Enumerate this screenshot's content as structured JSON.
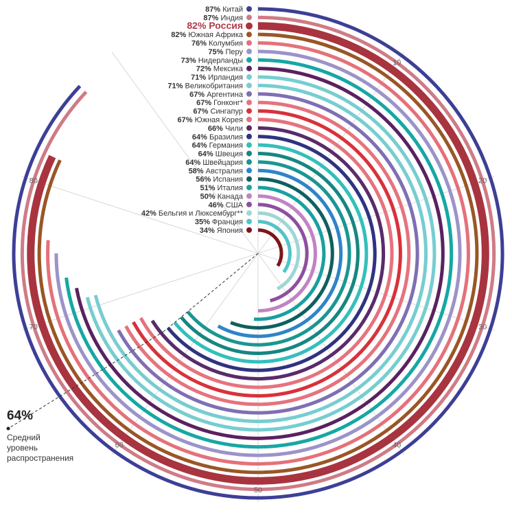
{
  "chart_data": {
    "type": "radial-bar",
    "scale_max": 100,
    "tick_labels": [
      "10",
      "20",
      "30",
      "40",
      "50",
      "60",
      "70",
      "80"
    ],
    "tick_values": [
      10,
      20,
      30,
      40,
      50,
      60,
      70,
      80
    ],
    "grid": true,
    "average": {
      "value": 64,
      "label": "64%",
      "caption": [
        "Средний",
        "уровень",
        "распространения"
      ]
    },
    "highlight_country": "Россия",
    "series": [
      {
        "country": "Китай",
        "value": 87,
        "pct": "87%",
        "color": "#3d3f96"
      },
      {
        "country": "Индия",
        "value": 87,
        "pct": "87%",
        "color": "#cf7b85"
      },
      {
        "country": "Россия",
        "value": 82,
        "pct": "82%",
        "color": "#a8343f",
        "highlight": true
      },
      {
        "country": "Южная Африка",
        "value": 82,
        "pct": "82%",
        "color": "#9a5626"
      },
      {
        "country": "Колумбия",
        "value": 76,
        "pct": "76%",
        "color": "#e4717a"
      },
      {
        "country": "Перу",
        "value": 75,
        "pct": "75%",
        "color": "#9b93c8"
      },
      {
        "country": "Нидерланды",
        "value": 73,
        "pct": "73%",
        "color": "#17a7a4"
      },
      {
        "country": "Мексика",
        "value": 72,
        "pct": "72%",
        "color": "#5a2160"
      },
      {
        "country": "Ирландия",
        "value": 71,
        "pct": "71%",
        "color": "#77cdd0"
      },
      {
        "country": "Великобритания",
        "value": 71,
        "pct": "71%",
        "color": "#77cdd0"
      },
      {
        "country": "Аргентина",
        "value": 67,
        "pct": "67%",
        "color": "#7f6fb3"
      },
      {
        "country": "Гонконг*",
        "value": 67,
        "pct": "67%",
        "color": "#e5737e"
      },
      {
        "country": "Сингапур",
        "value": 67,
        "pct": "67%",
        "color": "#d8323b"
      },
      {
        "country": "Южная Корея",
        "value": 67,
        "pct": "67%",
        "color": "#e5737e"
      },
      {
        "country": "Чили",
        "value": 66,
        "pct": "66%",
        "color": "#5a2b6b"
      },
      {
        "country": "Бразилия",
        "value": 64,
        "pct": "64%",
        "color": "#2f3380"
      },
      {
        "country": "Германия",
        "value": 64,
        "pct": "64%",
        "color": "#34bfbb"
      },
      {
        "country": "Швеция",
        "value": 64,
        "pct": "64%",
        "color": "#178680"
      },
      {
        "country": "Швейцария",
        "value": 64,
        "pct": "64%",
        "color": "#1a9692"
      },
      {
        "country": "Австралия",
        "value": 58,
        "pct": "58%",
        "color": "#2f84c9"
      },
      {
        "country": "Испания",
        "value": 56,
        "pct": "56%",
        "color": "#0f6060"
      },
      {
        "country": "Италия",
        "value": 51,
        "pct": "51%",
        "color": "#19a0a0"
      },
      {
        "country": "Канада",
        "value": 50,
        "pct": "50%",
        "color": "#c183c4"
      },
      {
        "country": "США",
        "value": 46,
        "pct": "46%",
        "color": "#8e4f9f"
      },
      {
        "country": "Бельгия и Люксембург**",
        "value": 42,
        "pct": "42%",
        "color": "#9ed6d5"
      },
      {
        "country": "Франция",
        "value": 35,
        "pct": "35%",
        "color": "#53c3c8"
      },
      {
        "country": "Япония",
        "value": 34,
        "pct": "34%",
        "color": "#7e1519"
      }
    ]
  }
}
